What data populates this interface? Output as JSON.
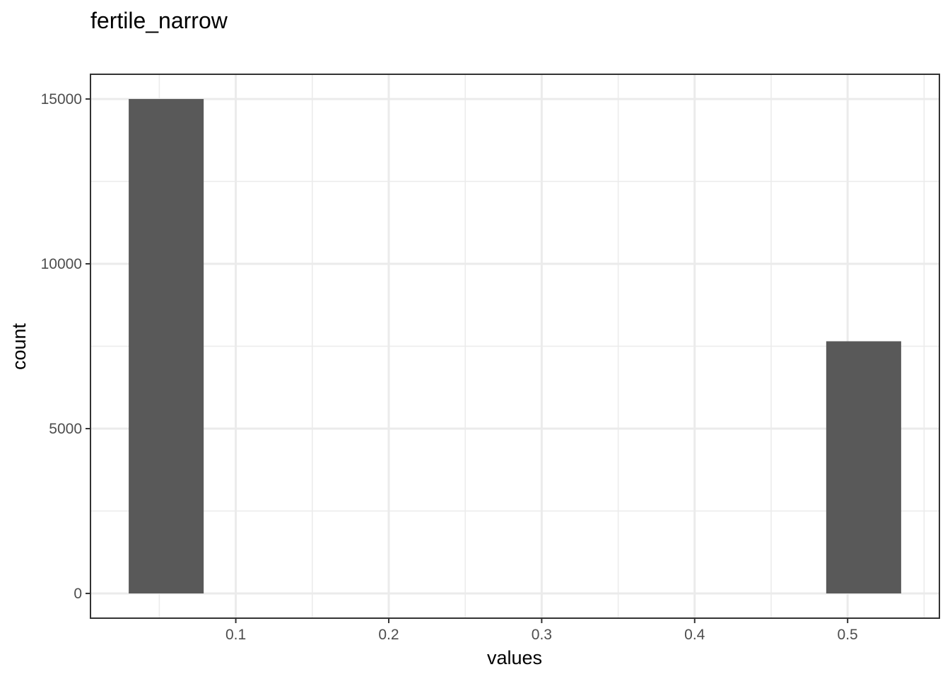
{
  "chart_data": {
    "type": "bar",
    "title": "fertile_narrow",
    "xlabel": "values",
    "ylabel": "count",
    "xlim": [
      0.005,
      0.56
    ],
    "ylim": [
      -750,
      15750
    ],
    "x_ticks": [
      0.1,
      0.2,
      0.3,
      0.4,
      0.5
    ],
    "x_tick_labels": [
      "0.1",
      "0.2",
      "0.3",
      "0.4",
      "0.5"
    ],
    "y_ticks": [
      0,
      5000,
      10000,
      15000
    ],
    "y_tick_labels": [
      "0",
      "5000",
      "10000",
      "15000"
    ],
    "bins": [
      {
        "x_start": 0.03,
        "x_end": 0.079,
        "count": 15000
      },
      {
        "x_start": 0.486,
        "x_end": 0.535,
        "count": 7650
      }
    ],
    "grid": true,
    "bar_color": "#595959",
    "grid_color": "#ebebeb",
    "panel_border_color": "#333333"
  }
}
